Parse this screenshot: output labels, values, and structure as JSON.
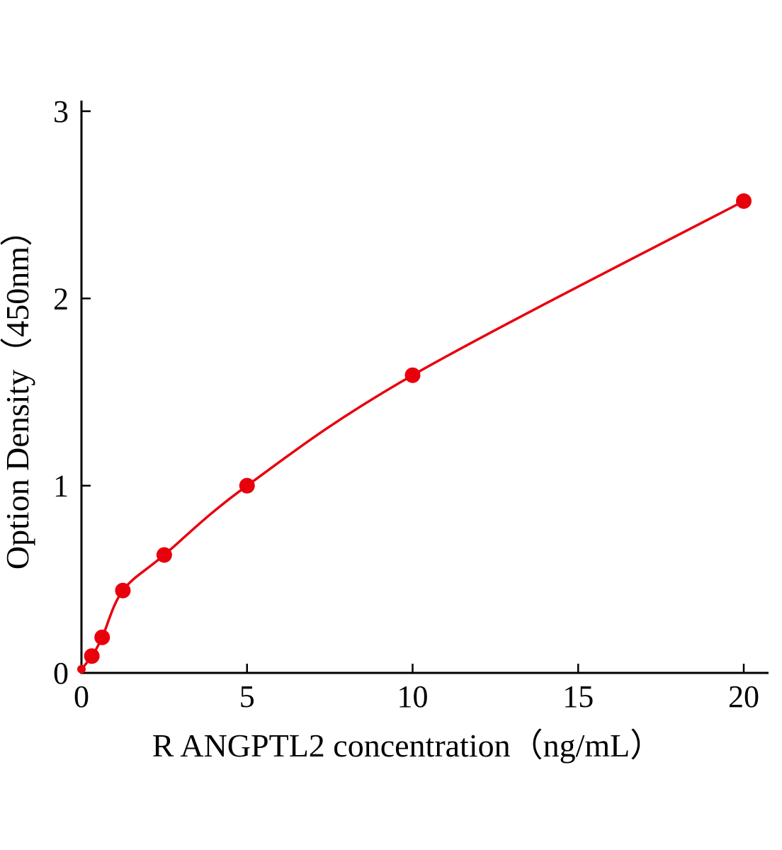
{
  "figure": {
    "kind": "ELISA standard curve",
    "accent_color": "#e8000d",
    "axis_color": "#000000",
    "background_color": "#ffffff"
  },
  "chart_data": {
    "type": "scatter",
    "curve": "smooth",
    "title": "",
    "xlabel": "R ANGPTL2 concentration（ng/mL）",
    "ylabel": "Option Density（450nm）",
    "xlim": [
      0,
      20.8
    ],
    "ylim": [
      0,
      3
    ],
    "x_ticks": [
      0,
      5,
      10,
      15,
      20
    ],
    "y_ticks": [
      0,
      1,
      2,
      3
    ],
    "grid": false,
    "legend": false,
    "series_color": "#e8000d",
    "marker_size": 11,
    "points": [
      {
        "x": 0,
        "y": 0.02,
        "r": 6
      },
      {
        "x": 0.313,
        "y": 0.09
      },
      {
        "x": 0.625,
        "y": 0.19
      },
      {
        "x": 1.25,
        "y": 0.44
      },
      {
        "x": 2.5,
        "y": 0.63
      },
      {
        "x": 5,
        "y": 1.0
      },
      {
        "x": 10,
        "y": 1.59
      },
      {
        "x": 20,
        "y": 2.52
      }
    ]
  }
}
